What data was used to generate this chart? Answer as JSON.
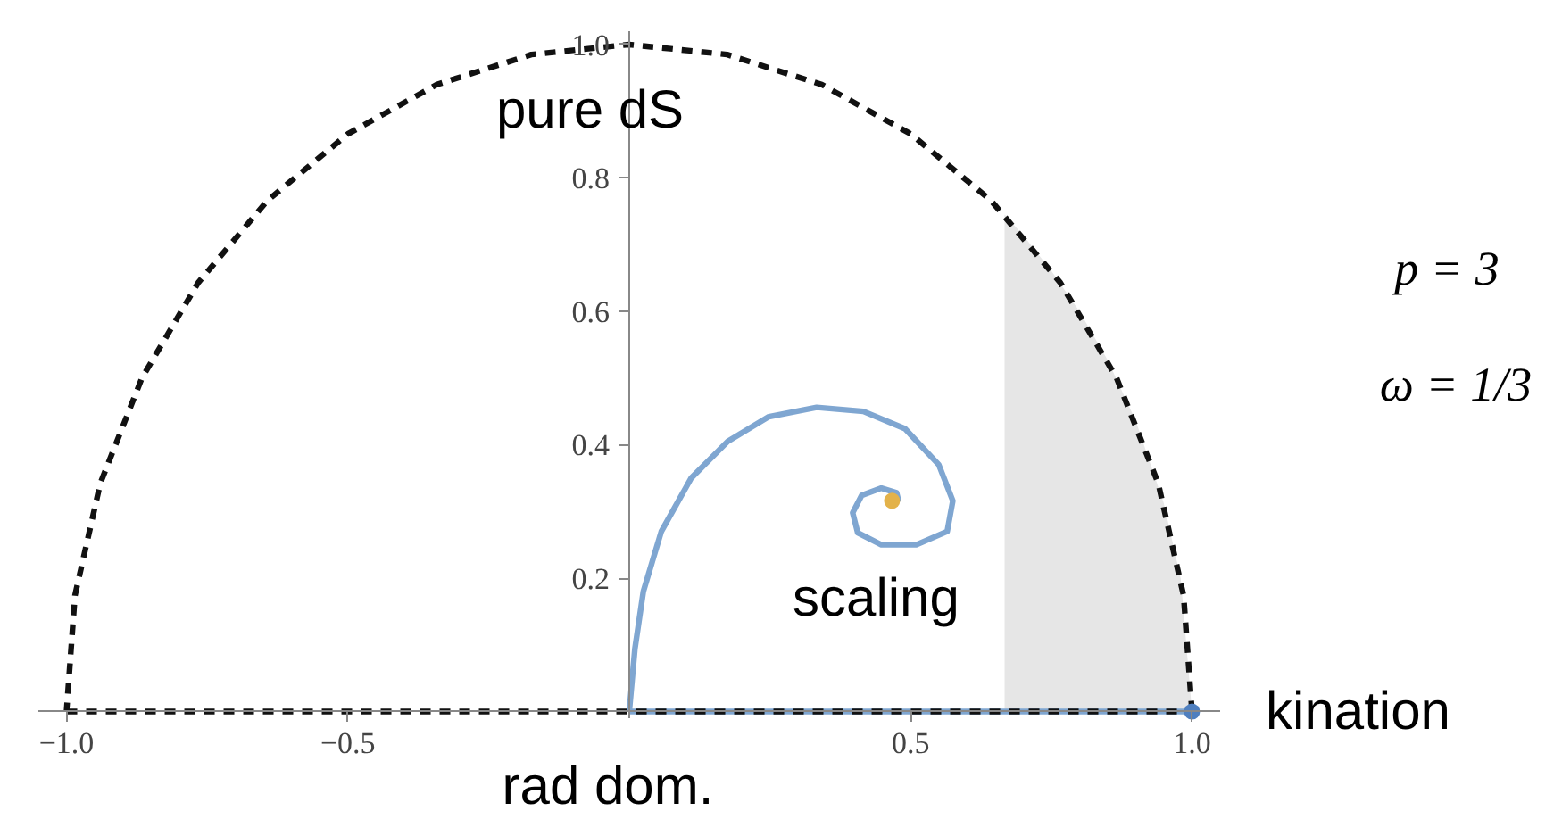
{
  "chart_data": {
    "type": "line",
    "xlim": [
      -1.05,
      1.05
    ],
    "ylim": [
      -0.01,
      1.02
    ],
    "xticks": [
      {
        "value": -1.0,
        "label": "−1.0"
      },
      {
        "value": -0.5,
        "label": "−0.5"
      },
      {
        "value": 0.5,
        "label": "0.5"
      },
      {
        "value": 1.0,
        "label": "1.0"
      }
    ],
    "yticks": [
      {
        "value": 0.2,
        "label": "0.2"
      },
      {
        "value": 0.4,
        "label": "0.4"
      },
      {
        "value": 0.6,
        "label": "0.6"
      },
      {
        "value": 0.8,
        "label": "0.8"
      },
      {
        "value": 1.0,
        "label": "1.0"
      }
    ],
    "grid": false,
    "series": [
      {
        "type": "area",
        "color": "#e6e6e6",
        "x": [
          0.667,
          0.7,
          0.75,
          0.8,
          0.85,
          0.9,
          0.95,
          0.98,
          1.0
        ],
        "values": [
          0.745,
          0.714,
          0.661,
          0.6,
          0.527,
          0.436,
          0.312,
          0.199,
          0.0
        ]
      },
      {
        "color": "#7fa6d1",
        "x": [
          0.0,
          1.0
        ],
        "values": [
          0.0,
          0.0
        ]
      },
      {
        "color": "#7fa6d1",
        "x": [
          0.0,
          0.01,
          0.025,
          0.057,
          0.11,
          0.175,
          0.248,
          0.333,
          0.416,
          0.49,
          0.55,
          0.575,
          0.565,
          0.51,
          0.448,
          0.406,
          0.397,
          0.413,
          0.448,
          0.475,
          0.478,
          0.467
        ],
        "values": [
          0.0,
          0.094,
          0.18,
          0.27,
          0.35,
          0.405,
          0.442,
          0.456,
          0.45,
          0.424,
          0.37,
          0.316,
          0.27,
          0.25,
          0.25,
          0.268,
          0.298,
          0.324,
          0.335,
          0.328,
          0.318,
          0.316
        ]
      },
      {
        "type": "line",
        "color": "#111111",
        "line_style": "dashed",
        "x": [
          1.0,
          0.985,
          0.94,
          0.866,
          0.766,
          0.643,
          0.5,
          0.342,
          0.174,
          0.0,
          -0.174,
          -0.342,
          -0.5,
          -0.643,
          -0.766,
          -0.866,
          -0.94,
          -0.985,
          -1.0
        ],
        "values": [
          0.0,
          0.174,
          0.342,
          0.5,
          0.643,
          0.766,
          0.866,
          0.94,
          0.985,
          1.0,
          0.985,
          0.94,
          0.866,
          0.766,
          0.643,
          0.5,
          0.342,
          0.174,
          0.0
        ]
      },
      {
        "type": "line",
        "color": "#111111",
        "line_style": "dashed",
        "x": [
          -1.0,
          1.0
        ],
        "values": [
          0.0,
          0.0
        ]
      },
      {
        "type": "scatter",
        "color": "#e3b24a",
        "x": [
          0.467
        ],
        "values": [
          0.316
        ]
      },
      {
        "type": "scatter",
        "color": "#4f7fbf",
        "x": [
          1.0
        ],
        "values": [
          0.0
        ]
      }
    ],
    "annotations": [
      {
        "text": "pure dS",
        "x": 0.0,
        "y": 1.0
      },
      {
        "text": "scaling",
        "x": 0.467,
        "y": 0.316
      },
      {
        "text": "kination",
        "x": 1.0,
        "y": 0.0
      },
      {
        "text": "rad dom.",
        "x": 0.0,
        "y": 0.0
      },
      "p = 3",
      "ω = 1/3"
    ]
  }
}
